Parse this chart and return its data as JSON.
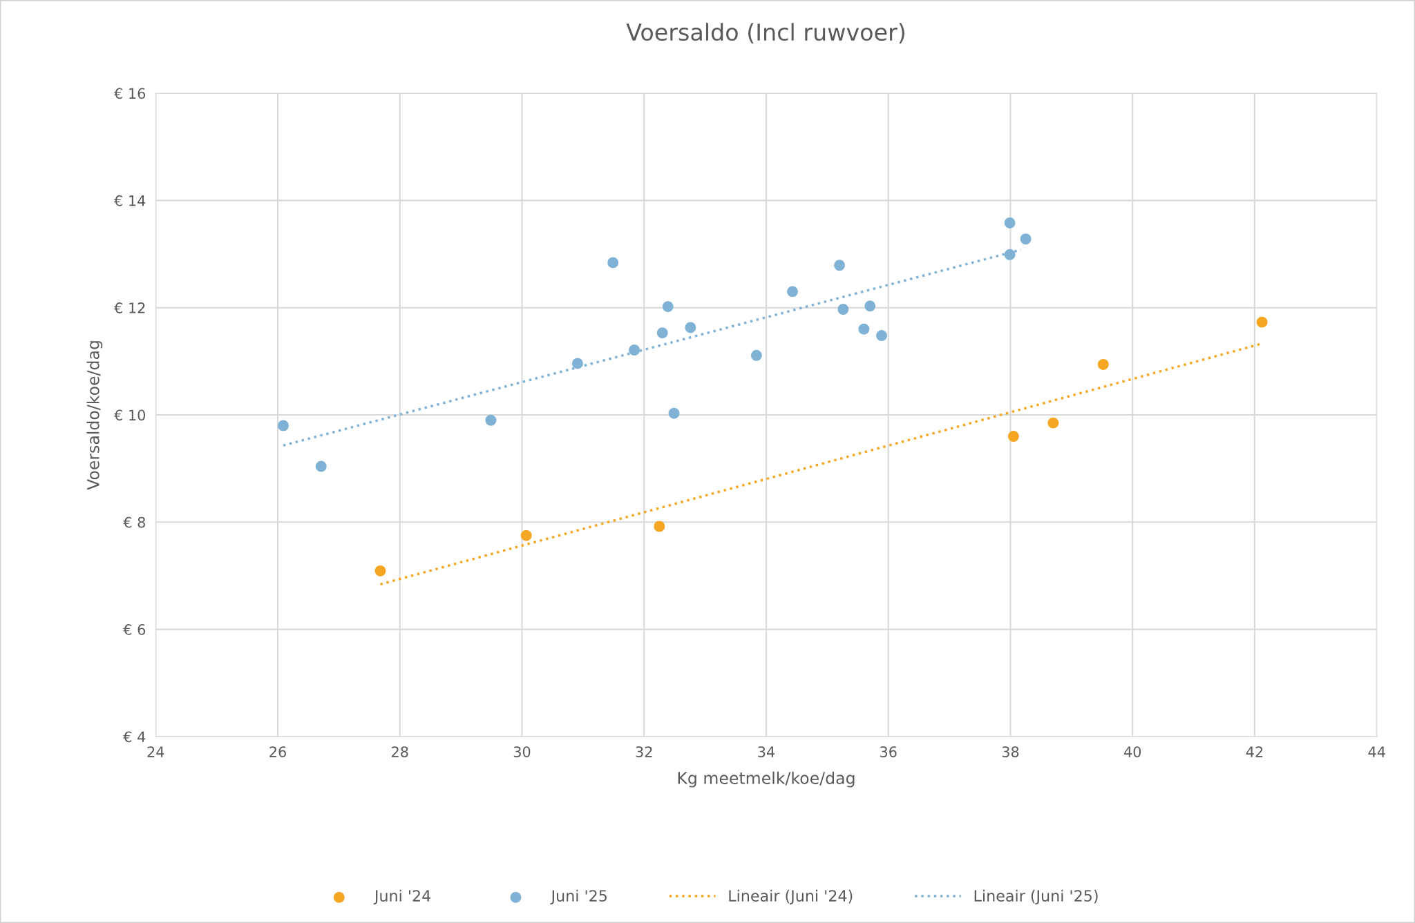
{
  "chart_data": {
    "type": "scatter",
    "title": "Voersaldo (Incl ruwvoer)",
    "xlabel": "Kg meetmelk/koe/dag",
    "ylabel": "Voersaldo/koe/dag",
    "xlim": [
      24,
      44
    ],
    "xticks": [
      24,
      26,
      28,
      30,
      32,
      34,
      36,
      38,
      40,
      42,
      44
    ],
    "ylim": [
      4,
      16
    ],
    "yticks": [
      {
        "value": 4,
        "label": "€ 4"
      },
      {
        "value": 6,
        "label": "€ 6"
      },
      {
        "value": 8,
        "label": "€ 8"
      },
      {
        "value": 10,
        "label": "€ 10"
      },
      {
        "value": 12,
        "label": "€ 12"
      },
      {
        "value": 14,
        "label": "€ 14"
      },
      {
        "value": 16,
        "label": "€ 16"
      }
    ],
    "grid": true,
    "legend": "bottom",
    "marker": "circle",
    "series": [
      {
        "name": "Juni '24",
        "color": "#f5a623",
        "x": [
          27.68,
          30.07,
          32.25,
          38.05,
          38.7,
          39.52,
          42.12
        ],
        "values": [
          7.09,
          7.75,
          7.92,
          9.6,
          9.85,
          10.94,
          11.73
        ]
      },
      {
        "name": "Juni '25",
        "color": "#7fb2d5",
        "x": [
          26.09,
          26.71,
          29.49,
          30.91,
          31.49,
          31.84,
          32.3,
          32.39,
          32.49,
          32.76,
          33.84,
          34.43,
          35.2,
          35.26,
          35.6,
          35.7,
          35.89,
          37.99,
          37.99,
          38.25
        ],
        "values": [
          9.8,
          9.04,
          9.9,
          10.96,
          12.84,
          11.21,
          11.53,
          12.02,
          10.03,
          11.63,
          11.11,
          12.3,
          12.79,
          11.97,
          11.6,
          12.03,
          11.48,
          13.58,
          12.99,
          13.28
        ]
      },
      {
        "name": "Lineair (Juni '24)",
        "type": "line",
        "line_style": "dotted",
        "marker": "none",
        "color": "#f5a623",
        "x": [
          27.68,
          42.12
        ],
        "values": [
          6.84,
          11.33
        ]
      },
      {
        "name": "Lineair (Juni '25)",
        "type": "line",
        "line_style": "dotted",
        "marker": "none",
        "color": "#7fb2d5",
        "x": [
          26.09,
          38.17
        ],
        "values": [
          9.43,
          13.08
        ]
      }
    ]
  }
}
